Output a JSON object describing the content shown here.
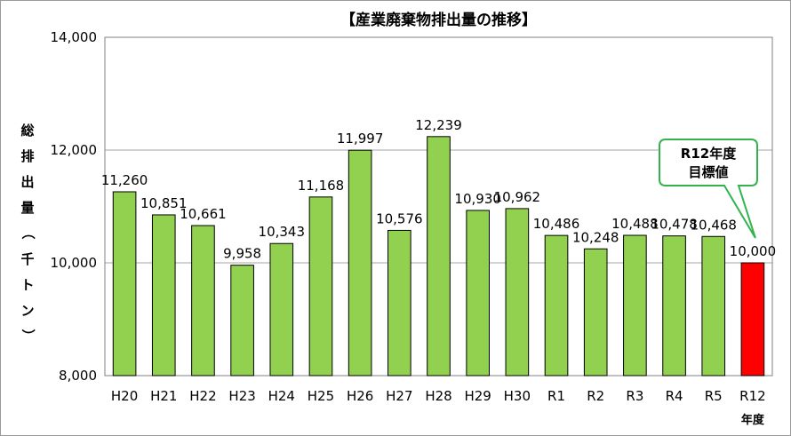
{
  "chart_data": {
    "type": "bar",
    "title": "【産業廃棄物排出量の推移】",
    "ylabel": "総排出量（千トン）",
    "xlabel_unit": "年度",
    "ylim": [
      8000,
      14000
    ],
    "yticks": [
      "8,000",
      "10,000",
      "12,000",
      "14,000"
    ],
    "grid": true,
    "categories": [
      "H20",
      "H21",
      "H22",
      "H23",
      "H24",
      "H25",
      "H26",
      "H27",
      "H28",
      "H29",
      "H30",
      "R1",
      "R2",
      "R3",
      "R4",
      "R5",
      "R12"
    ],
    "values": [
      11260,
      10851,
      10661,
      9958,
      10343,
      11168,
      11997,
      10576,
      12239,
      10930,
      10962,
      10486,
      10248,
      10488,
      10478,
      10468,
      10000
    ],
    "labels": [
      "11,260",
      "10,851",
      "10,661",
      "9,958",
      "10,343",
      "11,168",
      "11,997",
      "10,576",
      "12,239",
      "10,930",
      "10,962",
      "10,486",
      "10,248",
      "10,488",
      "10,478",
      "10,468",
      "10,000"
    ],
    "bar_color": "#92d050",
    "target_color": "#ff0000",
    "target_index": 16,
    "annotation": {
      "line1": "R12年度",
      "line2": "目標値",
      "border_color": "#33b34d"
    }
  }
}
